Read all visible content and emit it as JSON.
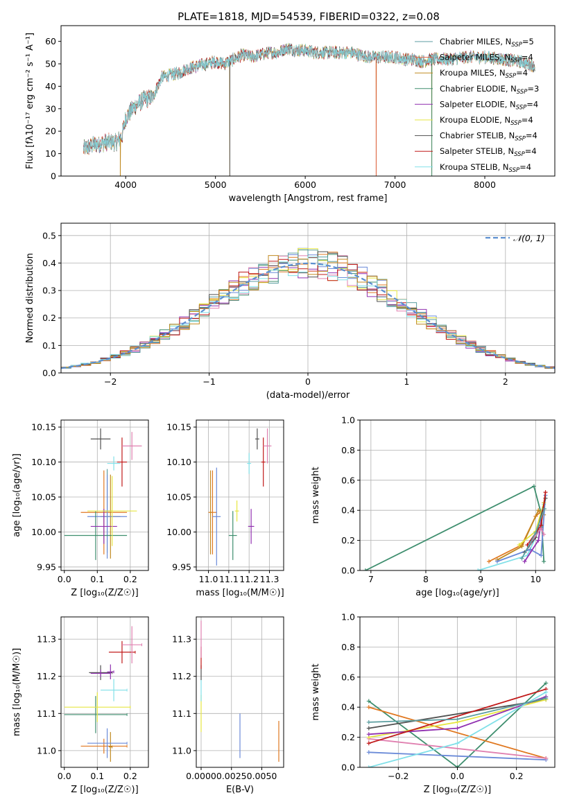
{
  "figure_title": "PLATE=1818, MJD=54539, FIBERID=0322, z=0.08",
  "colors": [
    "#5b9ea0",
    "#e06040",
    "#c08a20",
    "#3e8e6e",
    "#9030b0",
    "#e6e640",
    "#505050",
    "#c01818",
    "#80e0e8",
    "#e080b0",
    "#6a8ad8",
    "#e07820"
  ],
  "chart_data": [
    {
      "id": "spectrum",
      "type": "line",
      "title": "",
      "xlabel": "wavelength [Angstrom, rest frame]",
      "ylabel": "Flux [fλ10⁻¹⁷ erg cm⁻² s⁻¹ A⁻¹]",
      "xlim": [
        3280,
        8780
      ],
      "ylim": [
        0,
        67
      ],
      "xticks": [
        4000,
        5000,
        6000,
        7000,
        8000
      ],
      "yticks": [
        0,
        10,
        20,
        30,
        40,
        50,
        60
      ],
      "grid": false,
      "legend_position": "top-right",
      "legend": [
        {
          "name": "Chabrier MILES, N",
          "sub": "SSP",
          "tail": "=5"
        },
        {
          "name": "Salpeter MILES, N",
          "sub": "SSP",
          "tail": "=4"
        },
        {
          "name": "Kroupa MILES, N",
          "sub": "SSP",
          "tail": "=4"
        },
        {
          "name": "Chabrier ELODIE, N",
          "sub": "SSP",
          "tail": "=3"
        },
        {
          "name": "Salpeter ELODIE, N",
          "sub": "SSP",
          "tail": "=4"
        },
        {
          "name": "Kroupa ELODIE, N",
          "sub": "SSP",
          "tail": "=4"
        },
        {
          "name": "Chabrier STELIB, N",
          "sub": "SSP",
          "tail": "=4"
        },
        {
          "name": "Salpeter STELIB, N",
          "sub": "SSP",
          "tail": "=4"
        },
        {
          "name": "Kroupa STELIB, N",
          "sub": "SSP",
          "tail": "=4"
        }
      ],
      "continuum_points": [
        [
          3530,
          12
        ],
        [
          3650,
          14
        ],
        [
          3800,
          15
        ],
        [
          3900,
          15
        ],
        [
          3960,
          18
        ],
        [
          4000,
          26
        ],
        [
          4100,
          31
        ],
        [
          4200,
          34
        ],
        [
          4300,
          35
        ],
        [
          4400,
          44
        ],
        [
          4500,
          45
        ],
        [
          4600,
          46
        ],
        [
          4700,
          48
        ],
        [
          4800,
          49
        ],
        [
          4900,
          50
        ],
        [
          5000,
          51
        ],
        [
          5100,
          50
        ],
        [
          5200,
          52
        ],
        [
          5300,
          54
        ],
        [
          5400,
          53
        ],
        [
          5500,
          54
        ],
        [
          5600,
          55
        ],
        [
          5700,
          55
        ],
        [
          5800,
          57
        ],
        [
          5900,
          56
        ],
        [
          6000,
          56
        ],
        [
          6100,
          55
        ],
        [
          6200,
          55
        ],
        [
          6300,
          55
        ],
        [
          6400,
          55
        ],
        [
          6500,
          55
        ],
        [
          6600,
          54
        ],
        [
          6700,
          53
        ],
        [
          6800,
          53
        ],
        [
          6900,
          53
        ],
        [
          7000,
          53
        ],
        [
          7100,
          52
        ],
        [
          7200,
          52
        ],
        [
          7300,
          51
        ],
        [
          7400,
          52
        ],
        [
          7600,
          52
        ],
        [
          7800,
          53
        ],
        [
          8000,
          53
        ],
        [
          8200,
          52
        ],
        [
          8400,
          51
        ],
        [
          8560,
          49
        ]
      ],
      "masked_pixels": [
        [
          3940,
          2
        ],
        [
          5160,
          6
        ],
        [
          6790,
          1
        ],
        [
          7410,
          3
        ]
      ]
    },
    {
      "id": "residuals",
      "type": "histogram",
      "title": "",
      "xlabel": "(data-model)/error",
      "ylabel": "Normed distribution",
      "xlim": [
        -2.5,
        2.5
      ],
      "ylim": [
        0,
        0.545
      ],
      "xticks": [
        -2,
        -1,
        0,
        1,
        2
      ],
      "yticks": [
        0.0,
        0.1,
        0.2,
        0.3,
        0.4,
        0.5
      ],
      "grid": true,
      "legend_position": "top-right",
      "reference_label": "𝒩(0, 1)",
      "bin_width": 0.1
    },
    {
      "id": "age_vs_Z",
      "type": "scatter",
      "title": "",
      "xlabel": "Z [log₁₀(Z/Z☉)]",
      "ylabel": "age  [log₁₀(age/yr)]",
      "xlim": [
        -0.01,
        0.255
      ],
      "ylim": [
        9.945,
        10.16
      ],
      "xticks": [
        0.0,
        0.1,
        0.2
      ],
      "yticks": [
        9.95,
        10.0,
        10.05,
        10.1,
        10.15
      ],
      "grid": true,
      "points": [
        {
          "x": 0.13,
          "y": 10.03,
          "dx": 0.015,
          "dy": 0.06,
          "color": 0
        },
        {
          "x": 0.12,
          "y": 10.028,
          "dx": 0.07,
          "dy": 0.06,
          "color": 11
        },
        {
          "x": 0.14,
          "y": 10.022,
          "dx": 0.03,
          "dy": 0.06,
          "color": 2
        },
        {
          "x": 0.13,
          "y": 10.022,
          "dx": 0.06,
          "dy": 0.06,
          "color": 10
        },
        {
          "x": 0.095,
          "y": 9.995,
          "dx": 0.095,
          "dy": 0.035,
          "color": 3
        },
        {
          "x": 0.12,
          "y": 10.008,
          "dx": 0.04,
          "dy": 0.025,
          "color": 4
        },
        {
          "x": 0.145,
          "y": 10.03,
          "dx": 0.075,
          "dy": 0.05,
          "color": 5
        },
        {
          "x": 0.11,
          "y": 10.133,
          "dx": 0.03,
          "dy": 0.015,
          "color": 6
        },
        {
          "x": 0.175,
          "y": 10.1,
          "dx": 0.015,
          "dy": 0.035,
          "color": 7
        },
        {
          "x": 0.15,
          "y": 10.098,
          "dx": 0.02,
          "dy": 0.01,
          "color": 8
        },
        {
          "x": 0.205,
          "y": 10.123,
          "dx": 0.03,
          "dy": 0.02,
          "color": 9
        }
      ]
    },
    {
      "id": "age_vs_mass",
      "type": "scatter",
      "title": "",
      "xlabel": "mass [log₁₀(M/M☉)]",
      "ylabel": "",
      "xlim": [
        10.94,
        11.37
      ],
      "ylim": [
        9.945,
        10.16
      ],
      "xticks": [
        11.0,
        11.1,
        11.2,
        11.3
      ],
      "yticks": [
        9.95,
        10.0,
        10.05,
        10.1,
        10.15
      ],
      "grid": true,
      "points": [
        {
          "x": 11.02,
          "y": 10.028,
          "dx": 0.02,
          "dy": 0.06,
          "color": 11
        },
        {
          "x": 11.01,
          "y": 10.028,
          "dx": 0.005,
          "dy": 0.06,
          "color": 2
        },
        {
          "x": 11.04,
          "y": 10.022,
          "dx": 0.02,
          "dy": 0.07,
          "color": 10
        },
        {
          "x": 11.12,
          "y": 9.995,
          "dx": 0.02,
          "dy": 0.035,
          "color": 3
        },
        {
          "x": 11.14,
          "y": 10.03,
          "dx": 0.01,
          "dy": 0.015,
          "color": 5
        },
        {
          "x": 11.21,
          "y": 10.008,
          "dx": 0.015,
          "dy": 0.025,
          "color": 4
        },
        {
          "x": 11.2,
          "y": 10.098,
          "dx": 0.01,
          "dy": 0.015,
          "color": 8
        },
        {
          "x": 11.24,
          "y": 10.133,
          "dx": 0.01,
          "dy": 0.015,
          "color": 6
        },
        {
          "x": 11.27,
          "y": 10.1,
          "dx": 0.01,
          "dy": 0.035,
          "color": 7
        },
        {
          "x": 11.29,
          "y": 10.123,
          "dx": 0.02,
          "dy": 0.025,
          "color": 9
        }
      ]
    },
    {
      "id": "weight_vs_age",
      "type": "line",
      "title": "",
      "xlabel": "age  [log₁₀(age/yr)]",
      "ylabel": "mass weight",
      "xlim": [
        6.8,
        10.35
      ],
      "ylim": [
        0.0,
        1.0
      ],
      "xticks": [
        7,
        8,
        9,
        10
      ],
      "yticks": [
        0.0,
        0.2,
        0.4,
        0.6,
        0.8,
        1.0
      ],
      "grid": true,
      "series": [
        {
          "color": 3,
          "points": [
            [
              6.9,
              0.0
            ],
            [
              9.97,
              0.56
            ],
            [
              10.1,
              0.38
            ],
            [
              10.15,
              0.06
            ]
          ]
        },
        {
          "color": 11,
          "points": [
            [
              9.15,
              0.06
            ],
            [
              9.75,
              0.17
            ],
            [
              10.0,
              0.36
            ],
            [
              10.15,
              0.41
            ]
          ]
        },
        {
          "color": 2,
          "points": [
            [
              9.3,
              0.07
            ],
            [
              9.75,
              0.16
            ],
            [
              10.05,
              0.4
            ],
            [
              10.15,
              0.37
            ]
          ]
        },
        {
          "color": 8,
          "points": [
            [
              8.95,
              0.0
            ],
            [
              9.85,
              0.1
            ],
            [
              10.1,
              0.3
            ],
            [
              10.15,
              0.44
            ]
          ]
        },
        {
          "color": 10,
          "points": [
            [
              9.3,
              0.06
            ],
            [
              9.9,
              0.14
            ],
            [
              10.1,
              0.1
            ],
            [
              10.18,
              0.5
            ]
          ]
        },
        {
          "color": 4,
          "points": [
            [
              9.8,
              0.06
            ],
            [
              10.05,
              0.2
            ],
            [
              10.15,
              0.45
            ]
          ]
        },
        {
          "color": 5,
          "points": [
            [
              9.7,
              0.17
            ],
            [
              10.0,
              0.26
            ],
            [
              10.15,
              0.45
            ]
          ]
        },
        {
          "color": 6,
          "points": [
            [
              9.8,
              0.12
            ],
            [
              10.0,
              0.22
            ],
            [
              10.18,
              0.48
            ]
          ]
        },
        {
          "color": 7,
          "points": [
            [
              9.85,
              0.17
            ],
            [
              10.1,
              0.3
            ],
            [
              10.18,
              0.52
            ]
          ]
        },
        {
          "color": 9,
          "points": [
            [
              9.9,
              0.18
            ],
            [
              10.1,
              0.28
            ],
            [
              10.15,
              0.24
            ]
          ]
        },
        {
          "color": 0,
          "points": [
            [
              9.75,
              0.08
            ],
            [
              10.0,
              0.25
            ],
            [
              10.16,
              0.41
            ]
          ]
        }
      ]
    },
    {
      "id": "mass_vs_Z",
      "type": "scatter",
      "title": "",
      "xlabel": "Z [log₁₀(Z/Z☉)]",
      "ylabel": "mass [log₁₀(M/M☉)]",
      "xlim": [
        -0.01,
        0.255
      ],
      "ylim": [
        10.955,
        11.36
      ],
      "xticks": [
        0.0,
        0.1,
        0.2
      ],
      "yticks": [
        11.0,
        11.1,
        11.2,
        11.3
      ],
      "grid": true,
      "points": [
        {
          "x": 0.12,
          "y": 11.012,
          "dx": 0.07,
          "dy": 0.02,
          "color": 11
        },
        {
          "x": 0.14,
          "y": 11.01,
          "dx": 0.005,
          "dy": 0.04,
          "color": 2
        },
        {
          "x": 0.13,
          "y": 11.02,
          "dx": 0.06,
          "dy": 0.04,
          "color": 10
        },
        {
          "x": 0.095,
          "y": 11.097,
          "dx": 0.095,
          "dy": 0.05,
          "color": 3
        },
        {
          "x": 0.1,
          "y": 11.117,
          "dx": 0.1,
          "dy": 0.04,
          "color": 5
        },
        {
          "x": 0.15,
          "y": 11.163,
          "dx": 0.04,
          "dy": 0.03,
          "color": 8
        },
        {
          "x": 0.11,
          "y": 11.21,
          "dx": 0.035,
          "dy": 0.02,
          "color": 6
        },
        {
          "x": 0.11,
          "y": 11.208,
          "dx": 0.03,
          "dy": 0.01,
          "color": 4
        },
        {
          "x": 0.14,
          "y": 11.212,
          "dx": 0.01,
          "dy": 0.02,
          "color": 4
        },
        {
          "x": 0.175,
          "y": 11.265,
          "dx": 0.04,
          "dy": 0.03,
          "color": 7
        },
        {
          "x": 0.205,
          "y": 11.285,
          "dx": 0.03,
          "dy": 0.05,
          "color": 9
        }
      ]
    },
    {
      "id": "mass_vs_ebv",
      "type": "scatter",
      "title": "",
      "xlabel": "E(B-V)",
      "ylabel": "",
      "xlim": [
        -0.0004,
        0.0068
      ],
      "ylim": [
        10.955,
        11.36
      ],
      "xticks": [
        0.0,
        0.0025,
        0.005
      ],
      "yticks": [
        11.0,
        11.1,
        11.2,
        11.3
      ],
      "grid": true,
      "points": [
        {
          "x": 0.0,
          "y": 11.1,
          "dx": 0.0,
          "dy": 0.05,
          "color": 5
        },
        {
          "x": 0.0,
          "y": 11.163,
          "dx": 0.0,
          "dy": 0.03,
          "color": 8
        },
        {
          "x": 0.0,
          "y": 11.21,
          "dx": 0.0,
          "dy": 0.02,
          "color": 6
        },
        {
          "x": 0.0,
          "y": 11.25,
          "dx": 0.0,
          "dy": 0.03,
          "color": 7
        },
        {
          "x": 0.0,
          "y": 11.3,
          "dx": 0.0,
          "dy": 0.05,
          "color": 9
        },
        {
          "x": 0.0032,
          "y": 11.04,
          "dx": 0.0,
          "dy": 0.06,
          "color": 10
        },
        {
          "x": 0.0064,
          "y": 11.025,
          "dx": 0.0,
          "dy": 0.055,
          "color": 11
        }
      ]
    },
    {
      "id": "weight_vs_Z",
      "type": "line",
      "title": "",
      "xlabel": "Z [log₁₀(Z/Z☉)]",
      "ylabel": "mass weight",
      "xlim": [
        -0.33,
        0.33
      ],
      "ylim": [
        0.0,
        1.0
      ],
      "xticks": [
        -0.2,
        0.0,
        0.2
      ],
      "yticks": [
        0.0,
        0.2,
        0.4,
        0.6,
        0.8,
        1.0
      ],
      "grid": true,
      "series": [
        {
          "color": 3,
          "points": [
            [
              -0.3,
              0.44
            ],
            [
              0.0,
              0.0
            ],
            [
              0.3,
              0.56
            ]
          ]
        },
        {
          "color": 11,
          "points": [
            [
              -0.3,
              0.4
            ],
            [
              0.3,
              0.06
            ]
          ]
        },
        {
          "color": 10,
          "points": [
            [
              -0.3,
              0.1
            ],
            [
              0.3,
              0.05
            ]
          ]
        },
        {
          "color": 9,
          "points": [
            [
              -0.3,
              0.19
            ],
            [
              0.3,
              0.06
            ]
          ]
        },
        {
          "color": 6,
          "points": [
            [
              -0.3,
              0.26
            ],
            [
              0.3,
              0.45
            ]
          ]
        },
        {
          "color": 5,
          "points": [
            [
              -0.3,
              0.2
            ],
            [
              0.0,
              0.3
            ],
            [
              0.3,
              0.45
            ]
          ]
        },
        {
          "color": 4,
          "points": [
            [
              -0.3,
              0.22
            ],
            [
              0.0,
              0.26
            ],
            [
              0.3,
              0.47
            ]
          ]
        },
        {
          "color": 7,
          "points": [
            [
              -0.3,
              0.16
            ],
            [
              0.3,
              0.52
            ]
          ]
        },
        {
          "color": 8,
          "points": [
            [
              -0.3,
              0.0
            ],
            [
              0.0,
              0.16
            ],
            [
              0.3,
              0.5
            ]
          ]
        },
        {
          "color": 0,
          "points": [
            [
              -0.3,
              0.3
            ],
            [
              0.0,
              0.32
            ],
            [
              0.3,
              0.46
            ]
          ]
        }
      ]
    }
  ]
}
